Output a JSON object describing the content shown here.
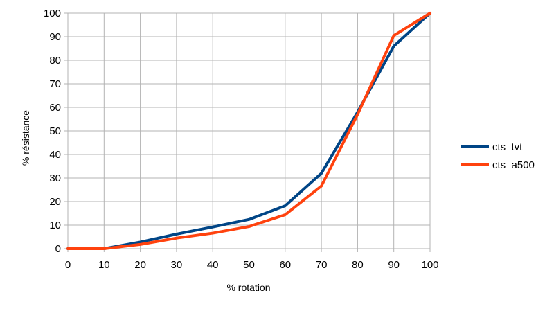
{
  "chart_data": {
    "type": "line",
    "title": "",
    "xlabel": "% rotation",
    "ylabel": "% résistance",
    "xlim": [
      0,
      100
    ],
    "ylim": [
      0,
      100
    ],
    "x_ticks": [
      "0",
      "10",
      "20",
      "30",
      "40",
      "50",
      "60",
      "70",
      "80",
      "90",
      "100"
    ],
    "y_ticks": [
      "0",
      "10",
      "20",
      "30",
      "40",
      "50",
      "60",
      "70",
      "80",
      "90",
      "100"
    ],
    "grid": true,
    "legend_position": "right",
    "x": [
      0,
      10,
      20,
      30,
      40,
      50,
      60,
      70,
      80,
      90,
      100
    ],
    "series": [
      {
        "name": "cts_tvt",
        "color": "#004586",
        "values": [
          0,
          0,
          2.8,
          6.2,
          9.2,
          12.4,
          18.2,
          32.0,
          58.0,
          86.0,
          100
        ]
      },
      {
        "name": "cts_a500",
        "color": "#ff420e",
        "values": [
          0,
          0,
          1.8,
          4.5,
          6.6,
          9.4,
          14.4,
          26.6,
          57.0,
          90.5,
          100
        ]
      }
    ]
  }
}
